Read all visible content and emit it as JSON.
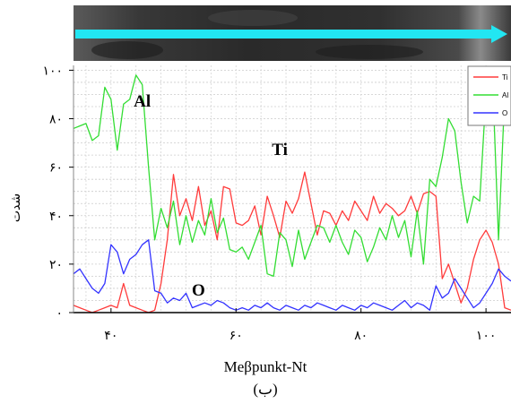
{
  "chart_data": {
    "type": "line",
    "xlabel": "Meβpunkt-Nt",
    "ylabel": "شدت",
    "caption": "(ب)",
    "xlim": [
      34,
      104
    ],
    "ylim": [
      0,
      102
    ],
    "x_ticks": [
      40,
      60,
      80,
      100
    ],
    "x_tick_labels": [
      "۴۰",
      "۶۰",
      "۸۰",
      "۱۰۰"
    ],
    "y_ticks": [
      0,
      20,
      40,
      60,
      80,
      100
    ],
    "y_tick_labels": [
      "۰",
      "۲۰",
      "۴۰",
      "۶۰",
      "۸۰",
      "۱۰۰"
    ],
    "grid": true,
    "legend_position": "top-right",
    "annotations": [
      {
        "text": "Al",
        "x": 45,
        "y": 85
      },
      {
        "text": "Ti",
        "x": 67,
        "y": 65
      },
      {
        "text": "O",
        "x": 54,
        "y": 7
      }
    ],
    "x": [
      34,
      35,
      36,
      37,
      38,
      39,
      40,
      41,
      42,
      43,
      44,
      45,
      46,
      47,
      48,
      49,
      50,
      51,
      52,
      53,
      54,
      55,
      56,
      57,
      58,
      59,
      60,
      61,
      62,
      63,
      64,
      65,
      66,
      67,
      68,
      69,
      70,
      71,
      72,
      73,
      74,
      75,
      76,
      77,
      78,
      79,
      80,
      81,
      82,
      83,
      84,
      85,
      86,
      87,
      88,
      89,
      90,
      91,
      92,
      93,
      94,
      95,
      96,
      97,
      98,
      99,
      100,
      101,
      102,
      103,
      104
    ],
    "series": [
      {
        "name": "Ti",
        "color": "#ff3b3b",
        "values": [
          3,
          2,
          1,
          0,
          1,
          2,
          3,
          2,
          12,
          3,
          2,
          1,
          0,
          1,
          12,
          30,
          57,
          40,
          47,
          38,
          52,
          36,
          42,
          30,
          52,
          51,
          37,
          36,
          38,
          44,
          32,
          48,
          40,
          31,
          46,
          41,
          47,
          58,
          45,
          32,
          42,
          41,
          36,
          42,
          38,
          46,
          42,
          38,
          48,
          41,
          45,
          43,
          40,
          42,
          48,
          41,
          49,
          50,
          48,
          14,
          20,
          12,
          4,
          10,
          22,
          30,
          34,
          29,
          20,
          2,
          1
        ]
      },
      {
        "name": "Al",
        "color": "#33dd33",
        "values": [
          76,
          77,
          78,
          71,
          73,
          93,
          88,
          67,
          86,
          88,
          98,
          94,
          60,
          30,
          43,
          35,
          46,
          28,
          40,
          29,
          38,
          32,
          47,
          33,
          39,
          26,
          25,
          27,
          22,
          29,
          36,
          16,
          15,
          33,
          30,
          19,
          34,
          22,
          29,
          36,
          35,
          29,
          36,
          29,
          24,
          34,
          31,
          21,
          27,
          35,
          30,
          40,
          31,
          38,
          23,
          42,
          20,
          55,
          52,
          64,
          80,
          75,
          54,
          37,
          48,
          46,
          90,
          100,
          30,
          90,
          100
        ]
      },
      {
        "name": "O",
        "color": "#3333ff",
        "values": [
          16,
          18,
          14,
          10,
          8,
          12,
          28,
          25,
          16,
          22,
          24,
          28,
          30,
          9,
          8,
          4,
          6,
          5,
          8,
          2,
          3,
          4,
          3,
          5,
          4,
          2,
          1,
          2,
          1,
          3,
          2,
          4,
          2,
          1,
          3,
          2,
          1,
          3,
          2,
          4,
          3,
          2,
          1,
          3,
          2,
          1,
          3,
          2,
          4,
          3,
          2,
          1,
          3,
          5,
          2,
          4,
          3,
          1,
          11,
          6,
          8,
          14,
          10,
          6,
          2,
          4,
          8,
          12,
          18,
          15,
          13
        ]
      }
    ]
  }
}
